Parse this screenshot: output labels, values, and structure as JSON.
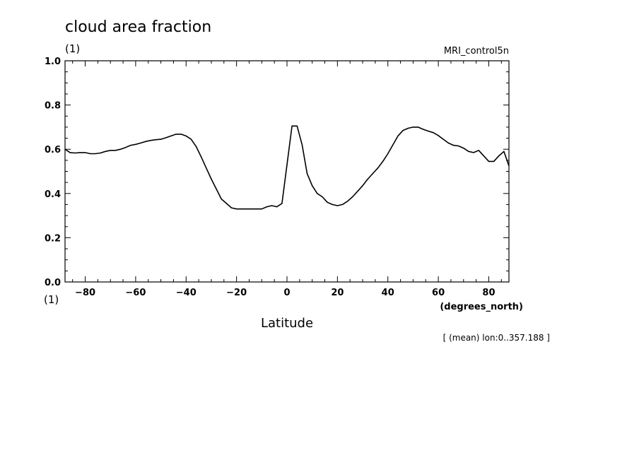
{
  "chart_data": {
    "type": "line",
    "title": "cloud area fraction",
    "y_units": "(1)",
    "x_units_left": "(1)",
    "dataset_label": "MRI_control5n",
    "xlabel": "Latitude",
    "xlabel_units": "(degrees_north)",
    "footnote": "[ (mean) lon:0..357.188 ]",
    "xlim": [
      -88,
      88
    ],
    "ylim": [
      0.0,
      1.0
    ],
    "x_ticks": [
      -80,
      -60,
      -40,
      -20,
      0,
      20,
      40,
      60,
      80
    ],
    "x_tick_labels": [
      "−80",
      "−60",
      "−40",
      "−20",
      "0",
      "20",
      "40",
      "60",
      "80"
    ],
    "y_ticks": [
      0.0,
      0.2,
      0.4,
      0.6,
      0.8,
      1.0
    ],
    "y_tick_labels": [
      "0.0",
      "0.2",
      "0.4",
      "0.6",
      "0.8",
      "1.0"
    ],
    "grid": false,
    "line_color": "#000000",
    "series": [
      {
        "x": [
          -88,
          -86,
          -84,
          -82,
          -80,
          -78,
          -76,
          -74,
          -72,
          -70,
          -68,
          -66,
          -64,
          -62,
          -60,
          -58,
          -56,
          -54,
          -52,
          -50,
          -48,
          -46,
          -44,
          -42,
          -40,
          -38,
          -36,
          -34,
          -32,
          -30,
          -28,
          -26,
          -24,
          -22,
          -20,
          -18,
          -16,
          -14,
          -12,
          -10,
          -8,
          -6,
          -4,
          -2,
          0,
          2,
          4,
          6,
          8,
          10,
          12,
          14,
          16,
          18,
          20,
          22,
          24,
          26,
          28,
          30,
          32,
          34,
          36,
          38,
          40,
          42,
          44,
          46,
          48,
          50,
          52,
          54,
          56,
          58,
          60,
          62,
          64,
          66,
          68,
          70,
          72,
          74,
          76,
          78,
          80,
          82,
          84,
          86,
          88
        ],
        "values": [
          0.6,
          0.585,
          0.583,
          0.585,
          0.585,
          0.58,
          0.58,
          0.583,
          0.59,
          0.595,
          0.595,
          0.6,
          0.608,
          0.618,
          0.622,
          0.628,
          0.635,
          0.64,
          0.643,
          0.645,
          0.652,
          0.66,
          0.668,
          0.668,
          0.66,
          0.645,
          0.612,
          0.565,
          0.515,
          0.465,
          0.42,
          0.375,
          0.355,
          0.335,
          0.33,
          0.33,
          0.33,
          0.33,
          0.33,
          0.33,
          0.34,
          0.345,
          0.34,
          0.355,
          0.53,
          0.705,
          0.705,
          0.62,
          0.49,
          0.435,
          0.4,
          0.385,
          0.36,
          0.35,
          0.345,
          0.35,
          0.365,
          0.385,
          0.41,
          0.435,
          0.465,
          0.49,
          0.515,
          0.545,
          0.58,
          0.62,
          0.66,
          0.685,
          0.695,
          0.7,
          0.7,
          0.69,
          0.682,
          0.675,
          0.662,
          0.645,
          0.628,
          0.618,
          0.615,
          0.605,
          0.59,
          0.585,
          0.595,
          0.57,
          0.545,
          0.545,
          0.57,
          0.59,
          0.525
        ]
      }
    ]
  }
}
